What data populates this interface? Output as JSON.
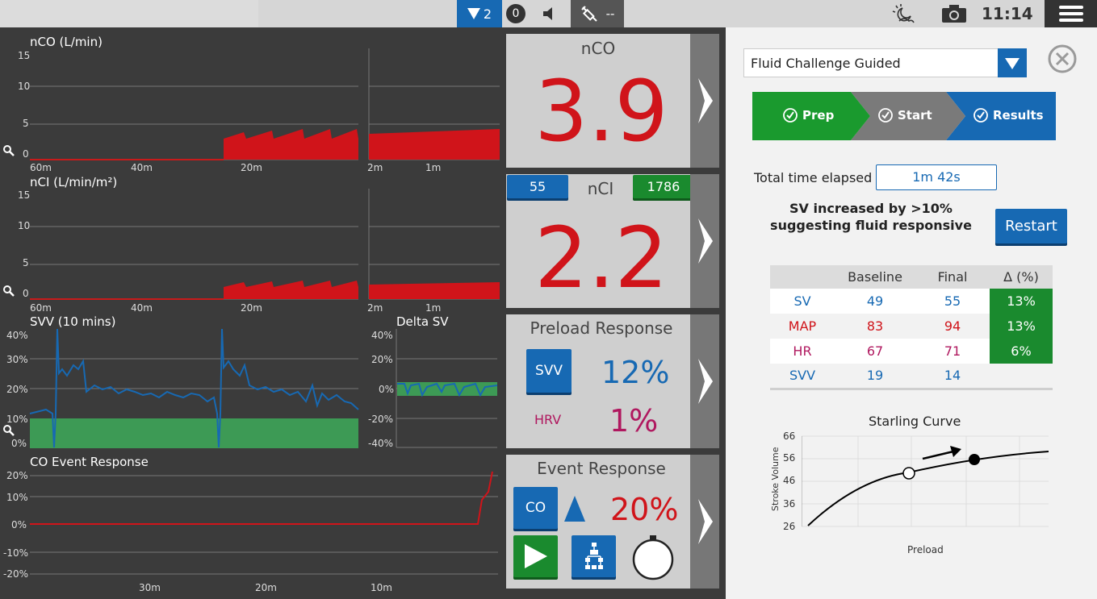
{
  "topbar": {
    "alarm_count": "2",
    "notification_count": "0",
    "syringe_value": "--",
    "clock": "11:14"
  },
  "colors": {
    "accent_blue": "#1769b3",
    "alarm_red": "#d0141a",
    "accent_green": "#1a8a2e",
    "hrv_magenta": "#b0185f"
  },
  "charts": {
    "nco": {
      "title": "nCO (L/min)",
      "y_ticks": [
        "15",
        "10",
        "5",
        "0"
      ],
      "x_ticks_left": [
        "60m",
        "40m",
        "20m"
      ],
      "x_ticks_right": [
        "2m",
        "1m"
      ]
    },
    "nci": {
      "title": "nCI (L/min/m²)",
      "y_ticks": [
        "15",
        "10",
        "5",
        "0"
      ],
      "x_ticks_left": [
        "60m",
        "40m",
        "20m"
      ],
      "x_ticks_right": [
        "2m",
        "1m"
      ]
    },
    "svv": {
      "title": "SVV (10 mins)",
      "y_ticks": [
        "40%",
        "30%",
        "20%",
        "10%",
        "0%"
      ]
    },
    "delta_sv": {
      "title": "Delta SV",
      "y_ticks": [
        "40%",
        "20%",
        "0%",
        "-20%",
        "-40%"
      ]
    },
    "co_event": {
      "title": "CO Event Response",
      "y_ticks": [
        "20%",
        "10%",
        "0%",
        "-10%",
        "-20%"
      ],
      "x_ticks": [
        "30m",
        "20m",
        "10m"
      ]
    }
  },
  "tiles": {
    "nco": {
      "title": "nCO",
      "value": "3.9"
    },
    "nci": {
      "title": "nCI",
      "value": "2.2",
      "left_badge": "55",
      "right_badge": "1786"
    },
    "preload": {
      "title": "Preload Response",
      "svv_label": "SVV",
      "svv_value": "12%",
      "hrv_label": "HRV",
      "hrv_value": "1%"
    },
    "event": {
      "title": "Event Response",
      "co_label": "CO",
      "value": "20%"
    }
  },
  "right_panel": {
    "protocol_select": "Fluid Challenge Guided",
    "steps": [
      "Prep",
      "Start",
      "Results"
    ],
    "elapsed_label": "Total time elapsed",
    "elapsed_value": "1m 42s",
    "message_line1": "SV increased by >10%",
    "message_line2": "suggesting fluid responsive",
    "restart_label": "Restart",
    "table": {
      "headers": [
        "",
        "Baseline",
        "Final",
        "Δ (%)"
      ],
      "rows": [
        {
          "name": "SV",
          "baseline": "49",
          "final": "55",
          "delta": "13%"
        },
        {
          "name": "MAP",
          "baseline": "83",
          "final": "94",
          "delta": "13%"
        },
        {
          "name": "HR",
          "baseline": "67",
          "final": "71",
          "delta": "6%"
        },
        {
          "name": "SVV",
          "baseline": "19",
          "final": "14",
          "delta": ""
        }
      ]
    },
    "starling": {
      "title": "Starling Curve",
      "ylabel": "Stroke Volume",
      "xlabel": "Preload",
      "y_ticks": [
        "66",
        "56",
        "46",
        "36",
        "26"
      ]
    }
  }
}
